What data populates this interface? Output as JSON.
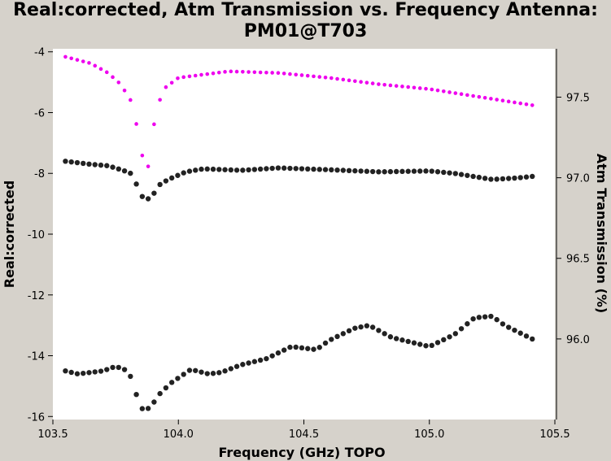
{
  "chart_data": {
    "type": "scatter",
    "title_line1": "Real:corrected, Atm Transmission vs. Frequency Antenna:",
    "title_line2": "PM01@T703",
    "xlabel": "Frequency (GHz) TOPO",
    "ylabel": "Real:corrected",
    "y2label": "Atm Transmission (%)",
    "xlim": [
      103.5,
      105.5
    ],
    "ylim": [
      -16.1,
      -3.9
    ],
    "y2lim": [
      95.5,
      97.8
    ],
    "xticks": [
      "103.5",
      "104.0",
      "104.5",
      "105.0",
      "105.5"
    ],
    "xtick_values": [
      103.5,
      104.0,
      104.5,
      105.0,
      105.5
    ],
    "yticks": [
      "-4",
      "-6",
      "-8",
      "-10",
      "-12",
      "-14",
      "-16"
    ],
    "ytick_values": [
      -4,
      -6,
      -8,
      -10,
      -12,
      -14,
      -16
    ],
    "y2ticks": [
      "97.5",
      "97.0",
      "96.5",
      "96.0"
    ],
    "y2tick_values": [
      97.5,
      97.0,
      96.5,
      96.0
    ],
    "grid": false,
    "colors": {
      "series_real": "#222222",
      "series_atm": "#ee00ee",
      "plot_bg": "#ffffff",
      "frame_bg": "#d6d2cb"
    },
    "x_range": {
      "start": 103.55,
      "end": 105.41,
      "count": 80
    },
    "series": [
      {
        "key": "real_upper",
        "axis": "left",
        "color": "#222222",
        "anchors": [
          [
            103.55,
            -7.6
          ],
          [
            103.65,
            -7.7
          ],
          [
            103.72,
            -7.75
          ],
          [
            103.78,
            -7.9
          ],
          [
            103.81,
            -8.0
          ],
          [
            103.83,
            -8.3
          ],
          [
            103.85,
            -8.7
          ],
          [
            103.87,
            -8.9
          ],
          [
            103.9,
            -8.7
          ],
          [
            103.92,
            -8.4
          ],
          [
            103.96,
            -8.2
          ],
          [
            104.03,
            -7.95
          ],
          [
            104.1,
            -7.85
          ],
          [
            104.25,
            -7.9
          ],
          [
            104.4,
            -7.82
          ],
          [
            104.6,
            -7.88
          ],
          [
            104.8,
            -7.95
          ],
          [
            105.0,
            -7.92
          ],
          [
            105.1,
            -8.0
          ],
          [
            105.25,
            -8.2
          ],
          [
            105.35,
            -8.15
          ],
          [
            105.41,
            -8.1
          ]
        ]
      },
      {
        "key": "real_lower",
        "axis": "left",
        "color": "#222222",
        "anchors": [
          [
            103.55,
            -14.5
          ],
          [
            103.6,
            -14.6
          ],
          [
            103.7,
            -14.5
          ],
          [
            103.75,
            -14.35
          ],
          [
            103.8,
            -14.5
          ],
          [
            103.82,
            -14.9
          ],
          [
            103.84,
            -15.5
          ],
          [
            103.86,
            -15.8
          ],
          [
            103.89,
            -15.7
          ],
          [
            103.92,
            -15.3
          ],
          [
            103.97,
            -14.9
          ],
          [
            104.05,
            -14.45
          ],
          [
            104.12,
            -14.6
          ],
          [
            104.17,
            -14.55
          ],
          [
            104.25,
            -14.3
          ],
          [
            104.35,
            -14.1
          ],
          [
            104.45,
            -13.7
          ],
          [
            104.55,
            -13.8
          ],
          [
            104.6,
            -13.5
          ],
          [
            104.7,
            -13.1
          ],
          [
            104.76,
            -13.0
          ],
          [
            104.85,
            -13.4
          ],
          [
            105.0,
            -13.7
          ],
          [
            105.1,
            -13.3
          ],
          [
            105.18,
            -12.75
          ],
          [
            105.25,
            -12.7
          ],
          [
            105.3,
            -13.0
          ],
          [
            105.41,
            -13.45
          ]
        ]
      },
      {
        "key": "atm_transmission",
        "axis": "right",
        "color": "#ee00ee",
        "anchors": [
          [
            103.55,
            97.75
          ],
          [
            103.65,
            97.71
          ],
          [
            103.72,
            97.65
          ],
          [
            103.77,
            97.58
          ],
          [
            103.81,
            97.48
          ],
          [
            103.83,
            97.35
          ],
          [
            103.85,
            97.22
          ],
          [
            103.87,
            96.95
          ],
          [
            103.89,
            97.2
          ],
          [
            103.91,
            97.4
          ],
          [
            103.94,
            97.55
          ],
          [
            104.0,
            97.62
          ],
          [
            104.2,
            97.66
          ],
          [
            104.4,
            97.65
          ],
          [
            104.6,
            97.62
          ],
          [
            104.8,
            97.58
          ],
          [
            105.0,
            97.55
          ],
          [
            105.41,
            97.45
          ]
        ]
      }
    ]
  }
}
